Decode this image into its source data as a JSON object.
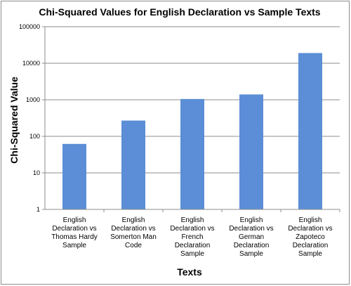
{
  "chart_data": {
    "type": "bar",
    "title": "Chi-Squared Values for English Declaration vs Sample Texts",
    "xlabel": "Texts",
    "ylabel": "Chi-Squared Value",
    "yscale": "log",
    "ylim": [
      1,
      100000
    ],
    "yticks": [
      "1",
      "10",
      "100",
      "1000",
      "10000",
      "100000"
    ],
    "grid": true,
    "legend": "none",
    "bar_color": "#5B8ED6",
    "categories": [
      "English Declaration vs Thomas Hardy Sample",
      "English Declaration vs Somerton Man Code",
      "English Declaration vs French Declaration Sample",
      "English Declaration vs German Declaration Sample",
      "English Declaration vs Zapoteco Declaration Sample"
    ],
    "category_lines": [
      [
        "English",
        "Declaration vs",
        "Thomas Hardy",
        "Sample"
      ],
      [
        "English",
        "Declaration vs",
        "Somerton Man",
        "Code"
      ],
      [
        "English",
        "Declaration vs",
        "French",
        "Declaration",
        "Sample"
      ],
      [
        "English",
        "Declaration vs",
        "German",
        "Declaration",
        "Sample"
      ],
      [
        "English",
        "Declaration vs",
        "Zapoteco",
        "Declaration",
        "Sample"
      ]
    ],
    "values": [
      62,
      270,
      1050,
      1400,
      19000
    ]
  }
}
